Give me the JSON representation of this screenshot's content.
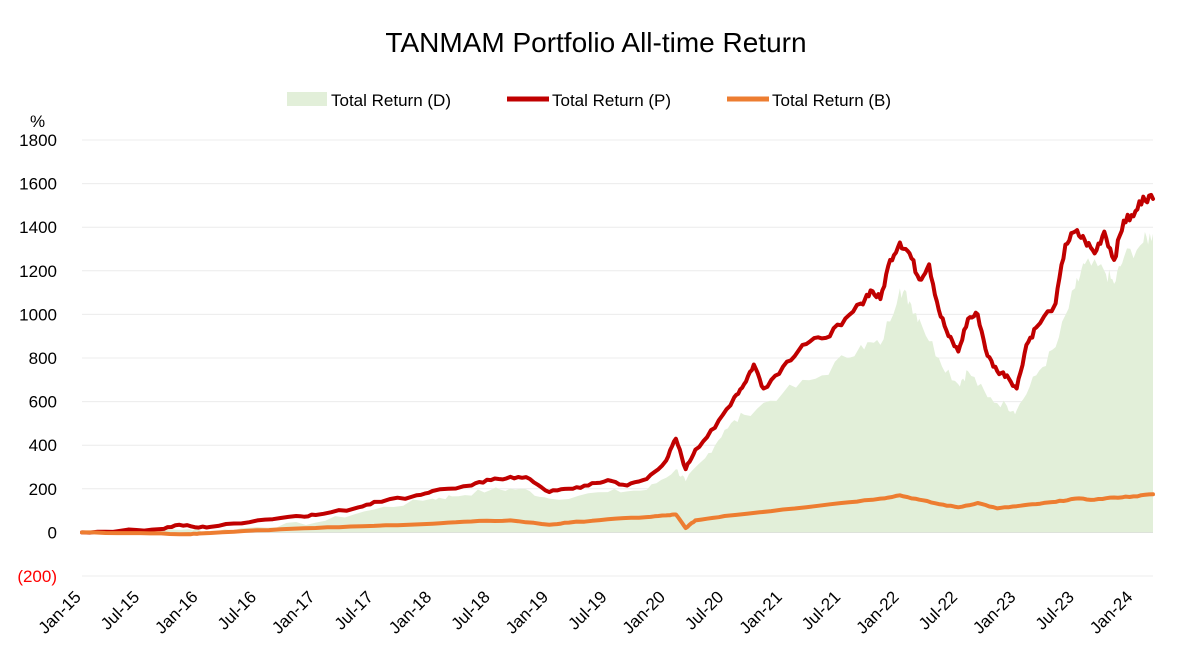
{
  "chart_data": {
    "type": "line",
    "title": "TANMAM Portfolio All-time Return",
    "ylabel": "%",
    "xlabel": "",
    "ylim": [
      -200,
      1800
    ],
    "yticks": [
      -200,
      0,
      200,
      400,
      600,
      800,
      1000,
      1200,
      1400,
      1600,
      1800
    ],
    "ytick_labels": [
      "(200)",
      "0",
      "200",
      "400",
      "600",
      "800",
      "1000",
      "1200",
      "1400",
      "1600",
      "1800"
    ],
    "x_start": 0,
    "x_end": 110,
    "xticks": [
      {
        "t": 0,
        "label": "Jan-15"
      },
      {
        "t": 6,
        "label": "Jul-15"
      },
      {
        "t": 12,
        "label": "Jan-16"
      },
      {
        "t": 18,
        "label": "Jul-16"
      },
      {
        "t": 24,
        "label": "Jan-17"
      },
      {
        "t": 30,
        "label": "Jul-17"
      },
      {
        "t": 36,
        "label": "Jan-18"
      },
      {
        "t": 42,
        "label": "Jul-18"
      },
      {
        "t": 48,
        "label": "Jan-19"
      },
      {
        "t": 54,
        "label": "Jul-19"
      },
      {
        "t": 60,
        "label": "Jan-20"
      },
      {
        "t": 66,
        "label": "Jul-20"
      },
      {
        "t": 72,
        "label": "Jan-21"
      },
      {
        "t": 78,
        "label": "Jul-21"
      },
      {
        "t": 84,
        "label": "Jan-22"
      },
      {
        "t": 90,
        "label": "Jul-22"
      },
      {
        "t": 96,
        "label": "Jan-23"
      },
      {
        "t": 102,
        "label": "Jul-23"
      },
      {
        "t": 108,
        "label": "Jan-24"
      }
    ],
    "legend_position": "top-center",
    "grid": true,
    "series": [
      {
        "name": "Total Return (D)",
        "style": "area",
        "color": "#e2efd9",
        "points": [
          [
            0,
            0
          ],
          [
            6,
            5
          ],
          [
            11,
            15
          ],
          [
            13,
            5
          ],
          [
            18,
            25
          ],
          [
            24,
            45
          ],
          [
            30,
            105
          ],
          [
            36,
            155
          ],
          [
            38,
            165
          ],
          [
            42,
            195
          ],
          [
            45,
            200
          ],
          [
            48,
            155
          ],
          [
            54,
            185
          ],
          [
            58,
            195
          ],
          [
            61,
            290
          ],
          [
            62,
            235
          ],
          [
            64,
            340
          ],
          [
            66,
            470
          ],
          [
            68,
            540
          ],
          [
            72,
            640
          ],
          [
            76,
            720
          ],
          [
            80,
            860
          ],
          [
            82,
            860
          ],
          [
            84,
            1120
          ],
          [
            85,
            1060
          ],
          [
            86,
            980
          ],
          [
            88,
            800
          ],
          [
            90,
            680
          ],
          [
            91,
            740
          ],
          [
            93,
            620
          ],
          [
            95,
            580
          ],
          [
            96,
            560
          ],
          [
            98,
            720
          ],
          [
            100,
            850
          ],
          [
            102,
            1120
          ],
          [
            103,
            1230
          ],
          [
            105,
            1200
          ],
          [
            106,
            1140
          ],
          [
            107,
            1260
          ],
          [
            109,
            1330
          ],
          [
            110,
            1370
          ]
        ]
      },
      {
        "name": "Total Return (P)",
        "style": "line",
        "color": "#c00000",
        "points": [
          [
            0,
            0
          ],
          [
            4,
            8
          ],
          [
            8,
            15
          ],
          [
            10,
            35
          ],
          [
            12,
            22
          ],
          [
            14,
            30
          ],
          [
            18,
            55
          ],
          [
            22,
            75
          ],
          [
            24,
            80
          ],
          [
            28,
            110
          ],
          [
            30,
            140
          ],
          [
            34,
            165
          ],
          [
            36,
            190
          ],
          [
            40,
            215
          ],
          [
            42,
            240
          ],
          [
            44,
            255
          ],
          [
            46,
            245
          ],
          [
            48,
            185
          ],
          [
            50,
            200
          ],
          [
            52,
            215
          ],
          [
            54,
            240
          ],
          [
            56,
            215
          ],
          [
            58,
            245
          ],
          [
            60,
            330
          ],
          [
            61,
            430
          ],
          [
            62,
            290
          ],
          [
            63,
            380
          ],
          [
            65,
            480
          ],
          [
            67,
            620
          ],
          [
            68,
            680
          ],
          [
            69,
            770
          ],
          [
            70,
            660
          ],
          [
            72,
            760
          ],
          [
            74,
            860
          ],
          [
            76,
            890
          ],
          [
            78,
            950
          ],
          [
            80,
            1050
          ],
          [
            81,
            1110
          ],
          [
            82,
            1070
          ],
          [
            83,
            1250
          ],
          [
            84,
            1330
          ],
          [
            85,
            1280
          ],
          [
            86,
            1160
          ],
          [
            87,
            1230
          ],
          [
            88,
            1020
          ],
          [
            89,
            900
          ],
          [
            90,
            830
          ],
          [
            91,
            980
          ],
          [
            92,
            1000
          ],
          [
            93,
            810
          ],
          [
            94,
            740
          ],
          [
            95,
            720
          ],
          [
            96,
            660
          ],
          [
            97,
            860
          ],
          [
            98,
            940
          ],
          [
            100,
            1050
          ],
          [
            101,
            1320
          ],
          [
            102,
            1380
          ],
          [
            103,
            1340
          ],
          [
            104,
            1280
          ],
          [
            105,
            1380
          ],
          [
            106,
            1250
          ],
          [
            107,
            1430
          ],
          [
            108,
            1450
          ],
          [
            109,
            1540
          ],
          [
            110,
            1530
          ]
        ]
      },
      {
        "name": "Total Return (B)",
        "style": "line",
        "color": "#ed7d31",
        "points": [
          [
            0,
            0
          ],
          [
            6,
            -3
          ],
          [
            11,
            -8
          ],
          [
            12,
            -5
          ],
          [
            18,
            10
          ],
          [
            24,
            20
          ],
          [
            30,
            30
          ],
          [
            36,
            40
          ],
          [
            40,
            50
          ],
          [
            44,
            55
          ],
          [
            48,
            35
          ],
          [
            50,
            45
          ],
          [
            54,
            60
          ],
          [
            58,
            70
          ],
          [
            60,
            78
          ],
          [
            61,
            82
          ],
          [
            62,
            20
          ],
          [
            63,
            55
          ],
          [
            66,
            75
          ],
          [
            72,
            105
          ],
          [
            78,
            135
          ],
          [
            82,
            155
          ],
          [
            84,
            170
          ],
          [
            86,
            150
          ],
          [
            88,
            130
          ],
          [
            90,
            115
          ],
          [
            92,
            135
          ],
          [
            94,
            110
          ],
          [
            96,
            120
          ],
          [
            98,
            130
          ],
          [
            100,
            140
          ],
          [
            102,
            155
          ],
          [
            104,
            150
          ],
          [
            106,
            160
          ],
          [
            108,
            165
          ],
          [
            110,
            175
          ]
        ]
      }
    ]
  }
}
